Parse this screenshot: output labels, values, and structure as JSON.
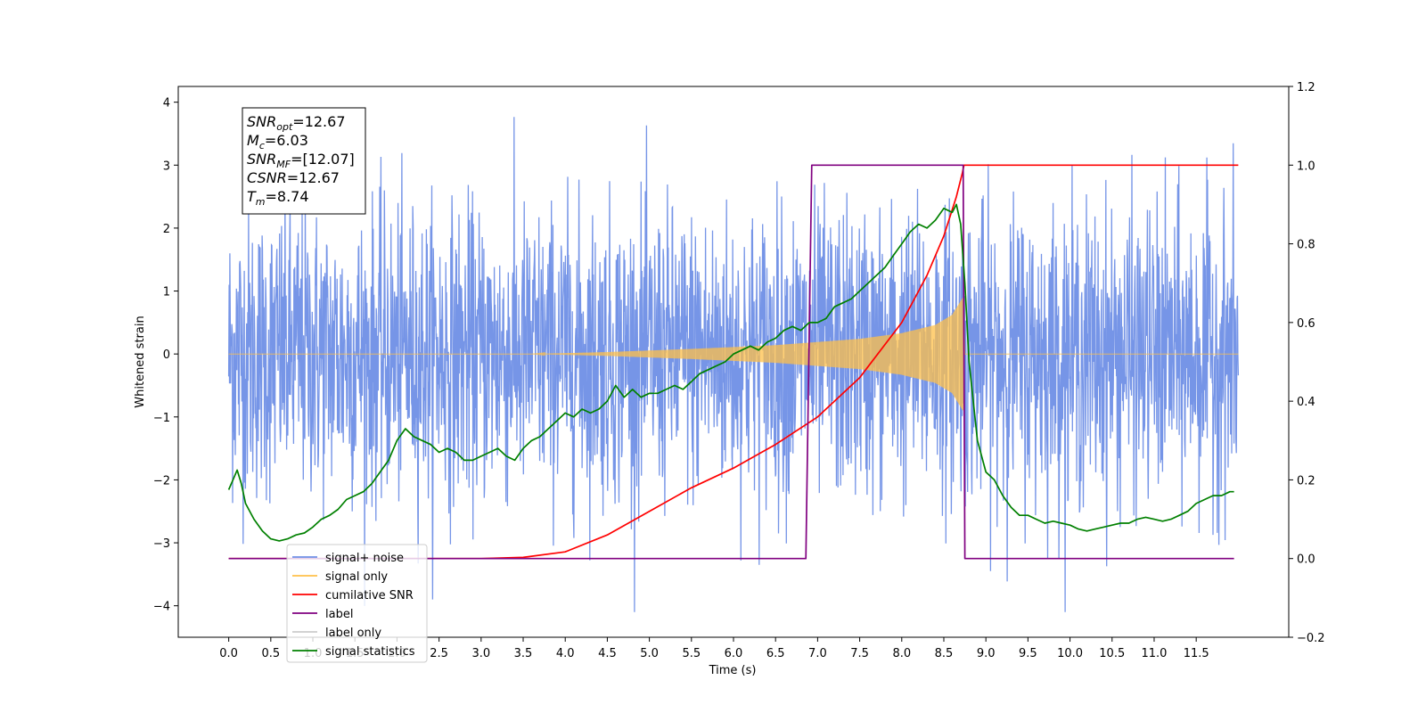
{
  "chart_data": {
    "type": "line",
    "title": "",
    "xlabel": "Time (s)",
    "ylabel": "Whitened strain",
    "xlim": [
      -0.6,
      12.6
    ],
    "ylim_left": [
      -4.5,
      4.25
    ],
    "ylim_right": [
      -0.2,
      1.2
    ],
    "x_ticks": [
      0.0,
      0.5,
      1.0,
      1.5,
      2.0,
      2.5,
      3.0,
      3.5,
      4.0,
      4.5,
      5.0,
      5.5,
      6.0,
      6.5,
      7.0,
      7.5,
      8.0,
      8.5,
      9.0,
      9.5,
      10.0,
      10.5,
      11.0,
      11.5
    ],
    "x_tick_labels": [
      "0.0",
      "0.5",
      "1.0",
      "1.5",
      "2.0",
      "2.5",
      "3.0",
      "3.5",
      "4.0",
      "4.5",
      "5.0",
      "5.5",
      "6.0",
      "6.5",
      "7.0",
      "7.5",
      "8.0",
      "8.5",
      "9.0",
      "9.5",
      "10.0",
      "10.5",
      "11.0",
      "11.5"
    ],
    "y_left_ticks": [
      -4,
      -3,
      -2,
      -1,
      0,
      1,
      2,
      3,
      4
    ],
    "y_left_tick_labels": [
      "−4",
      "−3",
      "−2",
      "−1",
      "0",
      "1",
      "2",
      "3",
      "4"
    ],
    "y_right_ticks": [
      -0.2,
      0.0,
      0.2,
      0.4,
      0.6,
      0.8,
      1.0,
      1.2
    ],
    "y_right_tick_labels": [
      "−0.2",
      "0.0",
      "0.2",
      "0.4",
      "0.6",
      "0.8",
      "1.0",
      "1.2"
    ],
    "grid": false,
    "legend_position": "lower-left",
    "series": [
      {
        "name": "signal+ noise",
        "axis": "left",
        "color": "#6f8fe6",
        "kind": "noise",
        "x_range": [
          0.0,
          12.0
        ],
        "amplitude_std": 1.15,
        "approx_y_range": [
          -4.1,
          3.85
        ]
      },
      {
        "name": "signal only",
        "axis": "left",
        "color": "#ffc04a",
        "kind": "chirp",
        "x_range": [
          0.0,
          12.0
        ],
        "chirp_start": 3.6,
        "chirp_end": 8.73,
        "envelope_x": [
          3.6,
          4.5,
          5.5,
          6.5,
          7.5,
          8.0,
          8.4,
          8.6,
          8.73
        ],
        "envelope_y": [
          0.0,
          0.03,
          0.08,
          0.14,
          0.24,
          0.33,
          0.46,
          0.62,
          0.9
        ]
      },
      {
        "name": "cumilative SNR",
        "axis": "right",
        "color": "#ff0000",
        "x": [
          0.0,
          3.0,
          3.5,
          4.0,
          4.5,
          5.0,
          5.5,
          6.0,
          6.5,
          7.0,
          7.5,
          8.0,
          8.3,
          8.5,
          8.65,
          8.72,
          8.74,
          9.0,
          10.0,
          11.0,
          12.0
        ],
        "y": [
          0.0,
          0.0,
          0.003,
          0.017,
          0.06,
          0.12,
          0.18,
          0.23,
          0.29,
          0.36,
          0.46,
          0.6,
          0.72,
          0.82,
          0.92,
          0.98,
          1.0,
          1.0,
          1.0,
          1.0,
          1.0
        ]
      },
      {
        "name": "label",
        "axis": "right",
        "color": "#800080",
        "x": [
          0.0,
          6.86,
          6.93,
          8.73,
          8.75,
          11.95
        ],
        "y": [
          0.0,
          0.0,
          1.0,
          1.0,
          0.0,
          0.0
        ]
      },
      {
        "name": "label only",
        "axis": "right",
        "color": "#cccccc",
        "x": [],
        "y": []
      },
      {
        "name": "signal statistics",
        "axis": "right",
        "color": "#008000",
        "x": [
          0.0,
          0.05,
          0.1,
          0.15,
          0.2,
          0.3,
          0.4,
          0.5,
          0.6,
          0.7,
          0.8,
          0.9,
          1.0,
          1.1,
          1.2,
          1.3,
          1.4,
          1.5,
          1.6,
          1.7,
          1.8,
          1.9,
          2.0,
          2.1,
          2.2,
          2.3,
          2.4,
          2.5,
          2.6,
          2.7,
          2.8,
          2.9,
          3.0,
          3.1,
          3.2,
          3.3,
          3.4,
          3.5,
          3.6,
          3.7,
          3.8,
          3.9,
          4.0,
          4.1,
          4.2,
          4.3,
          4.4,
          4.5,
          4.6,
          4.7,
          4.8,
          4.9,
          5.0,
          5.1,
          5.2,
          5.3,
          5.4,
          5.5,
          5.6,
          5.7,
          5.8,
          5.9,
          6.0,
          6.1,
          6.2,
          6.3,
          6.4,
          6.5,
          6.6,
          6.7,
          6.8,
          6.9,
          7.0,
          7.1,
          7.2,
          7.3,
          7.4,
          7.5,
          7.6,
          7.7,
          7.8,
          7.9,
          8.0,
          8.1,
          8.2,
          8.3,
          8.4,
          8.5,
          8.6,
          8.65,
          8.7,
          8.75,
          8.8,
          8.9,
          9.0,
          9.1,
          9.2,
          9.3,
          9.4,
          9.5,
          9.6,
          9.7,
          9.8,
          9.9,
          10.0,
          10.1,
          10.2,
          10.3,
          10.4,
          10.5,
          10.6,
          10.7,
          10.8,
          10.9,
          11.0,
          11.1,
          11.2,
          11.3,
          11.4,
          11.5,
          11.6,
          11.7,
          11.8,
          11.9,
          11.95
        ],
        "y": [
          0.175,
          0.2,
          0.225,
          0.19,
          0.14,
          0.1,
          0.07,
          0.05,
          0.045,
          0.05,
          0.06,
          0.065,
          0.08,
          0.1,
          0.11,
          0.125,
          0.15,
          0.16,
          0.17,
          0.19,
          0.22,
          0.25,
          0.3,
          0.33,
          0.31,
          0.3,
          0.29,
          0.27,
          0.28,
          0.27,
          0.25,
          0.25,
          0.26,
          0.27,
          0.28,
          0.26,
          0.25,
          0.28,
          0.3,
          0.31,
          0.33,
          0.35,
          0.37,
          0.36,
          0.38,
          0.37,
          0.38,
          0.4,
          0.44,
          0.41,
          0.43,
          0.41,
          0.42,
          0.42,
          0.43,
          0.44,
          0.43,
          0.45,
          0.47,
          0.48,
          0.49,
          0.5,
          0.52,
          0.53,
          0.54,
          0.53,
          0.55,
          0.56,
          0.58,
          0.59,
          0.58,
          0.6,
          0.6,
          0.61,
          0.64,
          0.65,
          0.66,
          0.68,
          0.7,
          0.72,
          0.74,
          0.77,
          0.8,
          0.83,
          0.85,
          0.84,
          0.86,
          0.89,
          0.88,
          0.9,
          0.85,
          0.7,
          0.5,
          0.3,
          0.22,
          0.2,
          0.16,
          0.13,
          0.11,
          0.11,
          0.1,
          0.09,
          0.095,
          0.09,
          0.085,
          0.075,
          0.07,
          0.075,
          0.08,
          0.085,
          0.09,
          0.09,
          0.1,
          0.105,
          0.1,
          0.095,
          0.1,
          0.11,
          0.12,
          0.14,
          0.15,
          0.16,
          0.16,
          0.17,
          0.17
        ]
      }
    ],
    "annotation": {
      "position": "top-left",
      "lines": [
        {
          "sym": "SNR",
          "sub": "opt",
          "value": "=12.67"
        },
        {
          "sym": "M",
          "sub": "c",
          "value": "=6.03"
        },
        {
          "sym": "SNR",
          "sub": "MF",
          "value": "=[12.07]"
        },
        {
          "sym": "CSNR",
          "sub": "",
          "value": "=12.67"
        },
        {
          "sym": "T",
          "sub": "m",
          "value": "=8.74"
        }
      ]
    }
  }
}
